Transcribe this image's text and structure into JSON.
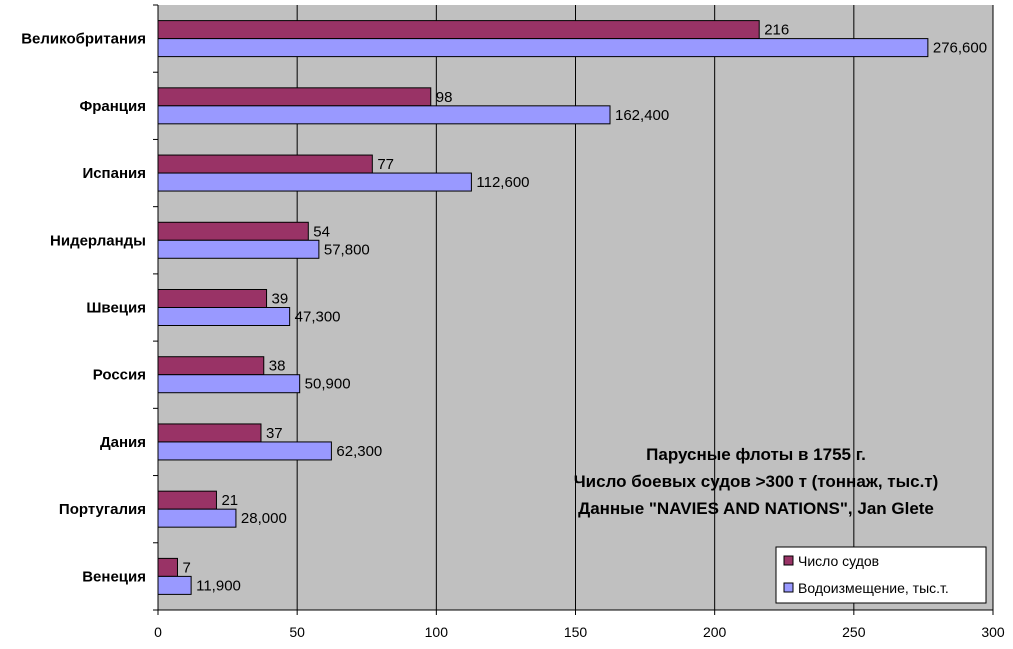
{
  "chart_data": {
    "type": "bar",
    "orientation": "horizontal",
    "categories": [
      "Великобритания",
      "Франция",
      "Испания",
      "Нидерланды",
      "Швеция",
      "Россия",
      "Дания",
      "Португалия",
      "Венеция"
    ],
    "series": [
      {
        "name": "Число судов",
        "values": [
          216,
          98,
          77,
          54,
          39,
          38,
          37,
          21,
          7
        ],
        "labels": [
          "216",
          "98",
          "77",
          "54",
          "39",
          "38",
          "37",
          "21",
          "7"
        ],
        "color": "#993366"
      },
      {
        "name": "Водоизмещение, тыс.т.",
        "values": [
          276.6,
          162.4,
          112.6,
          57.8,
          47.3,
          50.9,
          62.3,
          28.0,
          11.9
        ],
        "labels": [
          "276,600",
          "162,400",
          "112,600",
          "57,800",
          "47,300",
          "50,900",
          "62,300",
          "28,000",
          "11,900"
        ],
        "color": "#9999ff"
      }
    ],
    "xlim": [
      0,
      300
    ],
    "xticks": [
      0,
      50,
      100,
      150,
      200,
      250,
      300
    ],
    "xtick_labels": [
      "0",
      "50",
      "100",
      "150",
      "200",
      "250",
      "300"
    ],
    "grid": true,
    "plot_background": "#c0c0c0",
    "legend_position": "bottom-right",
    "annotation": [
      "Парусные флоты в 1755 г.",
      "Число боевых судов >300 т (тоннаж, тыс.т)",
      "Данные \"NAVIES AND NATIONS\", Jan Glete"
    ]
  }
}
